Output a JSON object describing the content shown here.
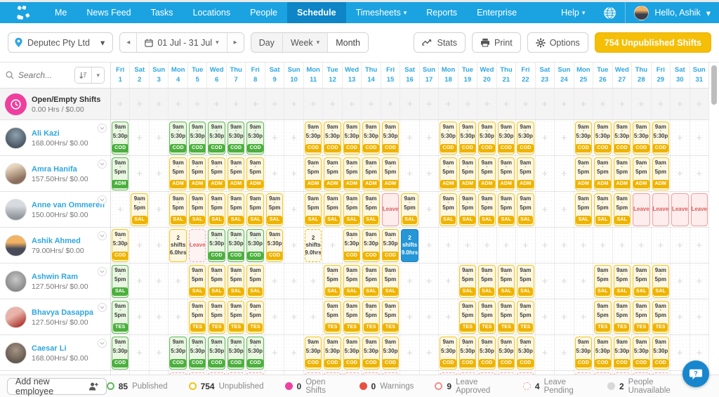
{
  "navbar": {
    "items": [
      {
        "label": "Me"
      },
      {
        "label": "News Feed"
      },
      {
        "label": "Tasks"
      },
      {
        "label": "Locations"
      },
      {
        "label": "People"
      },
      {
        "label": "Schedule"
      },
      {
        "label": "Timesheets",
        "caret": true
      },
      {
        "label": "Reports"
      },
      {
        "label": "Enterprise"
      }
    ],
    "active": "Schedule",
    "help_label": "Help",
    "greeting": "Hello, Ashik"
  },
  "toolbar": {
    "location": "Deputec Pty Ltd",
    "date_range": "01 Jul - 31 Jul",
    "views": [
      {
        "label": "Day"
      },
      {
        "label": "Week",
        "caret": true
      },
      {
        "label": "Month",
        "active": true
      }
    ],
    "stats_label": "Stats",
    "print_label": "Print",
    "options_label": "Options",
    "unpublished_button": "754 Unpublished Shifts"
  },
  "search": {
    "placeholder": "Search..."
  },
  "days": [
    {
      "dow": "Fri",
      "num": 1
    },
    {
      "dow": "Sat",
      "num": 2
    },
    {
      "dow": "Sun",
      "num": 3
    },
    {
      "dow": "Mon",
      "num": 4
    },
    {
      "dow": "Tue",
      "num": 5
    },
    {
      "dow": "Wed",
      "num": 6
    },
    {
      "dow": "Thu",
      "num": 7
    },
    {
      "dow": "Fri",
      "num": 8
    },
    {
      "dow": "Sat",
      "num": 9
    },
    {
      "dow": "Sun",
      "num": 10
    },
    {
      "dow": "Mon",
      "num": 11
    },
    {
      "dow": "Tue",
      "num": 12
    },
    {
      "dow": "Wed",
      "num": 13
    },
    {
      "dow": "Thu",
      "num": 14
    },
    {
      "dow": "Fri",
      "num": 15
    },
    {
      "dow": "Sat",
      "num": 16
    },
    {
      "dow": "Sun",
      "num": 17
    },
    {
      "dow": "Mon",
      "num": 18
    },
    {
      "dow": "Tue",
      "num": 19
    },
    {
      "dow": "Wed",
      "num": 20
    },
    {
      "dow": "Thu",
      "num": 21
    },
    {
      "dow": "Fri",
      "num": 22
    },
    {
      "dow": "Sat",
      "num": 23
    },
    {
      "dow": "Sun",
      "num": 24
    },
    {
      "dow": "Mon",
      "num": 25
    },
    {
      "dow": "Tue",
      "num": 26
    },
    {
      "dow": "Wed",
      "num": 27
    },
    {
      "dow": "Thu",
      "num": 28
    },
    {
      "dow": "Fri",
      "num": 29
    },
    {
      "dow": "Sat",
      "num": 30
    },
    {
      "dow": "Sun",
      "num": 31
    }
  ],
  "rows": [
    {
      "type": "open",
      "title": "Open/Empty Shifts",
      "subtitle": "0.00 Hrs / $0.00"
    },
    {
      "type": "employee",
      "name": "Ali Kazi",
      "hours": "168.00Hrs/ $0.00",
      "shift": {
        "start": "9am",
        "end": "5:30p",
        "area": "COD"
      },
      "cells": {
        "1": "pub",
        "4": "pub",
        "5": "pub",
        "6": "pub",
        "7": "pub",
        "8": "pub",
        "11": "unpub",
        "12": "unpub",
        "13": "unpub",
        "14": "unpub",
        "15": "unpub",
        "18": "unpub",
        "19": "unpub",
        "20": "unpub",
        "21": "unpub",
        "22": "unpub",
        "25": "unpub",
        "26": "unpub",
        "27": "unpub",
        "28": "unpub",
        "29": "unpub"
      }
    },
    {
      "type": "employee",
      "name": "Amra Hanifa",
      "hours": "157.50Hrs/ $0.00",
      "shift": {
        "start": "9am",
        "end": "5pm",
        "area": "ADM"
      },
      "cells": {
        "1": "pub",
        "4": "unpub",
        "5": "unpub",
        "6": "unpub",
        "7": "unpub",
        "8": "unpub",
        "11": "unpub",
        "12": "unpub",
        "13": "unpub",
        "14": "unpub",
        "15": "unpub",
        "18": "unpub",
        "19": "unpub",
        "20": "unpub",
        "21": "unpub",
        "22": "unpub",
        "25": "unpub",
        "26": "unpub",
        "27": "unpub",
        "28": "unpub",
        "29": "unpub"
      }
    },
    {
      "type": "employee",
      "name": "Anne van Ommeren",
      "hours": "150.00Hrs/ $0.00",
      "shift": {
        "start": "9am",
        "end": "5pm",
        "area": "SAL"
      },
      "cells": {
        "2": "unpub",
        "4": "unpub",
        "5": "unpub",
        "6": "unpub",
        "7": "unpub",
        "8": "unpub",
        "9": "unpub",
        "11": "unpub",
        "12": "unpub",
        "13": "unpub",
        "14": "unpub",
        "15": {
          "t": "leaveA",
          "label": "Leave"
        },
        "16": "unpub",
        "18": "unpub",
        "19": "unpub",
        "20": "unpub",
        "21": "unpub",
        "22": "unpub",
        "25": "unpub",
        "26": "unpub",
        "27": "unpub",
        "28": {
          "t": "leaveA",
          "label": "Leave"
        },
        "29": {
          "t": "leaveA",
          "label": "Leave"
        },
        "30": {
          "t": "leaveA",
          "label": "Leave"
        },
        "31": {
          "t": "leaveA",
          "label": "Leave"
        }
      }
    },
    {
      "type": "employee",
      "name": "Ashik Ahmed",
      "hours": "79.00Hrs/ $0.00",
      "shift": {
        "start": "9am",
        "end": "5:30p",
        "area": "COD"
      },
      "cells": {
        "1": "unpub",
        "4": {
          "t": "multi",
          "lines": [
            "2",
            "shifts",
            "6.0hrs"
          ]
        },
        "5": {
          "t": "leaveP",
          "label": "Leave"
        },
        "6": "pub",
        "7": "pub",
        "8": "pub",
        "9": "unpub",
        "11": {
          "t": "multiD",
          "lines": [
            "2",
            "shifts",
            "9.0hrs"
          ]
        },
        "13": "unpub",
        "14": "unpub",
        "15": "unpub",
        "16": {
          "t": "multiSel",
          "lines": [
            "2",
            "shifts",
            "9.0hrs"
          ]
        }
      }
    },
    {
      "type": "employee",
      "name": "Ashwin Ram",
      "hours": "127.50Hrs/ $0.00",
      "shift": {
        "start": "9am",
        "end": "5pm",
        "area": "SAL"
      },
      "cells": {
        "1": "pub",
        "5": "unpub",
        "6": "unpub",
        "7": "unpub",
        "8": "unpub",
        "12": "unpub",
        "13": "unpub",
        "14": "unpub",
        "15": "unpub",
        "19": "unpub",
        "20": "unpub",
        "21": "unpub",
        "22": "unpub",
        "26": "unpub",
        "27": "unpub",
        "28": "unpub",
        "29": "unpub"
      }
    },
    {
      "type": "employee",
      "name": "Bhavya Dasappa",
      "hours": "127.50Hrs/ $0.00",
      "shift": {
        "start": "9am",
        "end": "5pm",
        "area": "TES"
      },
      "cells": {
        "1": "pub",
        "5": "unpub",
        "6": "unpub",
        "7": "unpub",
        "8": "unpub",
        "12": "unpub",
        "13": "unpub",
        "14": "unpub",
        "15": "unpub",
        "19": "unpub",
        "20": "unpub",
        "21": "unpub",
        "22": "unpub",
        "26": "unpub",
        "27": "unpub",
        "28": "unpub",
        "29": "unpub"
      }
    },
    {
      "type": "employee",
      "name": "Caesar Li",
      "hours": "168.00Hrs/ $0.00",
      "shift": {
        "start": "9am",
        "end": "5:30p",
        "area": "COD"
      },
      "cells": {
        "1": "pub",
        "4": "pub",
        "5": "pub",
        "6": "pub",
        "7": "pub",
        "8": "pub",
        "11": "unpub",
        "12": "unpub",
        "13": "unpub",
        "14": "unpub",
        "15": "unpub",
        "18": "unpub",
        "19": "unpub",
        "20": "unpub",
        "21": "unpub",
        "22": "unpub",
        "25": "unpub",
        "26": "unpub",
        "27": "unpub",
        "28": "unpub",
        "29": "unpub"
      }
    },
    {
      "type": "partial",
      "days": [
        4,
        5,
        6,
        7,
        8,
        11,
        12,
        13,
        14,
        15,
        18,
        19,
        20,
        21,
        22,
        25,
        26,
        27,
        28,
        29
      ]
    }
  ],
  "footer": {
    "add_employee": "Add new employee",
    "legend": [
      {
        "count": "85",
        "label": "Published",
        "swatch": "green-outline"
      },
      {
        "count": "754",
        "label": "Unpublished",
        "swatch": "yellow-outline"
      },
      {
        "count": "0",
        "label": "Open Shifts",
        "swatch": "pink-filled"
      },
      {
        "count": "0",
        "label": "Warnings",
        "swatch": "red-filled"
      },
      {
        "count": "9",
        "label": "Leave Approved",
        "swatch": "red-outline"
      },
      {
        "count": "4",
        "label": "Leave Pending",
        "swatch": "pink-dashed"
      },
      {
        "count": "2",
        "label": "People Unavailable",
        "swatch": "gray-filled"
      }
    ]
  },
  "colors": {
    "navbar": "#1ba3e1",
    "navbar_active": "#0d85c6",
    "published_green": "#5db653",
    "unpublished_yellow": "#f2c41c",
    "open_shift_pink": "#ee3f9e",
    "leave_red": "#e05c5c",
    "selected_blue": "#2596d6",
    "accent_blue": "#2fa7e0",
    "unpublished_button_gold": "#f5bf07"
  }
}
